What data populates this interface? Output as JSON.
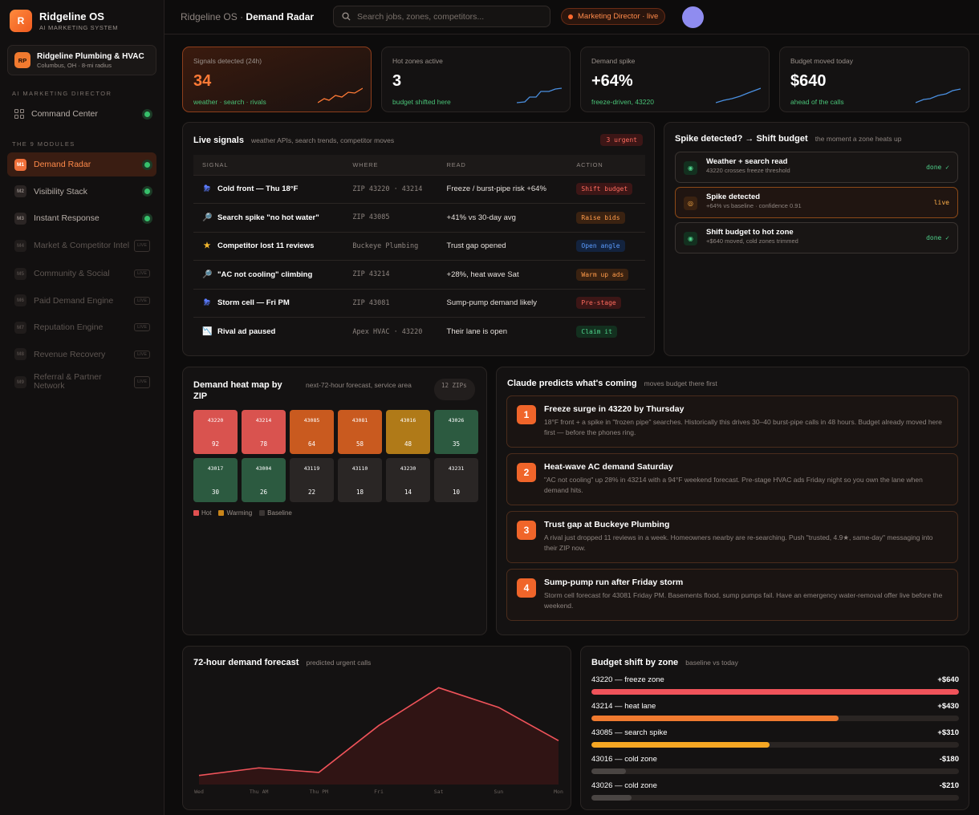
{
  "brand": {
    "logo": "R",
    "name": "Ridgeline OS",
    "sub": "AI MARKETING SYSTEM"
  },
  "org": {
    "initials": "RP",
    "name": "Ridgeline Plumbing & HVAC",
    "sub": "Columbus, OH · 8-mi radius"
  },
  "sidebar": {
    "section1": "AI MARKETING DIRECTOR",
    "command": "Command Center",
    "section2": "THE 9 MODULES",
    "modules": [
      {
        "badge": "M1",
        "label": "Demand Radar"
      },
      {
        "badge": "M2",
        "label": "Visibility Stack"
      },
      {
        "badge": "M3",
        "label": "Instant Response"
      },
      {
        "badge": "M4",
        "label": "Market & Competitor Intel",
        "tag": "LIVE"
      },
      {
        "badge": "M5",
        "label": "Community & Social",
        "tag": "LIVE"
      },
      {
        "badge": "M6",
        "label": "Paid Demand Engine",
        "tag": "LIVE"
      },
      {
        "badge": "M7",
        "label": "Reputation Engine",
        "tag": "LIVE"
      },
      {
        "badge": "M8",
        "label": "Revenue Recovery",
        "tag": "LIVE"
      },
      {
        "badge": "M9",
        "label": "Referral & Partner Network",
        "tag": "LIVE"
      }
    ]
  },
  "topbar": {
    "crumb_app": "Ridgeline OS",
    "crumb_sep": "·",
    "crumb_page": "Demand Radar",
    "search_placeholder": "Search jobs, zones, competitors...",
    "status": "Marketing Director · live"
  },
  "stats": [
    {
      "label": "Signals detected (24h)",
      "value": "34",
      "note": "weather · search · rivals"
    },
    {
      "label": "Hot zones active",
      "value": "3",
      "note": "budget shifted here"
    },
    {
      "label": "Demand spike",
      "value": "+64%",
      "note": "freeze-driven, 43220"
    },
    {
      "label": "Budget moved today",
      "value": "$640",
      "note": "ahead of the calls"
    }
  ],
  "signals": {
    "title": "Live signals",
    "sub": "weather APIs, search trends, competitor moves",
    "urgent": "3 urgent",
    "headers": [
      "SIGNAL",
      "WHERE",
      "READ",
      "ACTION"
    ],
    "rows": [
      {
        "icon": "storm-icon",
        "glyph": "⛈",
        "signal": "Cold front — Thu 18°F",
        "where": "ZIP 43220 · 43214",
        "read": "Freeze / burst-pipe risk +64%",
        "action": "Shift budget",
        "tone": "red"
      },
      {
        "icon": "search-icon",
        "glyph": "🔎",
        "signal": "Search spike \"no hot water\"",
        "where": "ZIP 43085",
        "read": "+41% vs 30-day avg",
        "action": "Raise bids",
        "tone": "orange"
      },
      {
        "icon": "star-icon",
        "glyph": "★",
        "signal": "Competitor lost 11 reviews",
        "where": "Buckeye Plumbing",
        "read": "Trust gap opened",
        "action": "Open angle",
        "tone": "blue"
      },
      {
        "icon": "search-icon",
        "glyph": "🔎",
        "signal": "\"AC not cooling\" climbing",
        "where": "ZIP 43214",
        "read": "+28%, heat wave Sat",
        "action": "Warm up ads",
        "tone": "orange"
      },
      {
        "icon": "storm-icon",
        "glyph": "⛈",
        "signal": "Storm cell — Fri PM",
        "where": "ZIP 43081",
        "read": "Sump-pump demand likely",
        "action": "Pre-stage",
        "tone": "red"
      },
      {
        "icon": "chart-down-icon",
        "glyph": "📉",
        "signal": "Rival ad paused",
        "where": "Apex HVAC · 43220",
        "read": "Their lane is open",
        "action": "Claim it",
        "tone": "green"
      }
    ]
  },
  "spike": {
    "title": "Spike detected? → Shift budget",
    "sub": "the moment a zone heats up",
    "steps": [
      {
        "title": "Weather + search read",
        "sub": "43220 crosses freeze threshold",
        "status": "done ✓"
      },
      {
        "title": "Spike detected",
        "sub": "+64% vs baseline · confidence 0.91",
        "status": "live"
      },
      {
        "title": "Shift budget to hot zone",
        "sub": "+$640 moved, cold zones trimmed",
        "status": "done ✓"
      }
    ]
  },
  "heatmap": {
    "title": "Demand heat map by ZIP",
    "sub": "next-72-hour forecast, service area",
    "badge": "12 ZIPs",
    "cells": [
      {
        "zip": "43220",
        "v": "92",
        "level": "hot"
      },
      {
        "zip": "43214",
        "v": "78",
        "level": "hot"
      },
      {
        "zip": "43085",
        "v": "64",
        "level": "hot2"
      },
      {
        "zip": "43081",
        "v": "58",
        "level": "hot2"
      },
      {
        "zip": "43016",
        "v": "48",
        "level": "warm"
      },
      {
        "zip": "43026",
        "v": "35",
        "level": "green"
      },
      {
        "zip": "43017",
        "v": "30",
        "level": "green"
      },
      {
        "zip": "43004",
        "v": "26",
        "level": "green"
      },
      {
        "zip": "43119",
        "v": "22",
        "level": "base"
      },
      {
        "zip": "43110",
        "v": "18",
        "level": "base"
      },
      {
        "zip": "43230",
        "v": "14",
        "level": "base"
      },
      {
        "zip": "43231",
        "v": "10",
        "level": "base"
      }
    ],
    "legend": [
      "Hot",
      "Warming",
      "Baseline"
    ]
  },
  "predict": {
    "title": "Claude predicts what's coming",
    "sub": "moves budget there first",
    "items": [
      {
        "n": "1",
        "title": "Freeze surge in 43220 by Thursday",
        "desc": "18°F front + a spike in \"frozen pipe\" searches. Historically this drives 30–40 burst-pipe calls in 48 hours. Budget already moved here first — before the phones ring."
      },
      {
        "n": "2",
        "title": "Heat-wave AC demand Saturday",
        "desc": "\"AC not cooling\" up 28% in 43214 with a 94°F weekend forecast. Pre-stage HVAC ads Friday night so you own the lane when demand hits."
      },
      {
        "n": "3",
        "title": "Trust gap at Buckeye Plumbing",
        "desc": "A rival just dropped 11 reviews in a week. Homeowners nearby are re-searching. Push \"trusted, 4.9★, same-day\" messaging into their ZIP now."
      },
      {
        "n": "4",
        "title": "Sump-pump run after Friday storm",
        "desc": "Storm cell forecast for 43081 Friday PM. Basements flood, sump pumps fail. Have an emergency water-removal offer live before the weekend."
      }
    ]
  },
  "chart_data": [
    {
      "type": "area",
      "title": "72-hour demand forecast",
      "subtitle": "predicted urgent calls",
      "categories": [
        "Wed",
        "Thu AM",
        "Thu PM",
        "Fri",
        "Sat",
        "Sun",
        "Mon"
      ],
      "values": [
        12,
        22,
        16,
        78,
        128,
        102,
        58
      ],
      "ylim": [
        0,
        140
      ],
      "grid": false
    },
    {
      "type": "bar",
      "title": "Budget shift by zone",
      "subtitle": "baseline vs today",
      "categories": [
        "43220 — freeze zone",
        "43214 — heat lane",
        "43085 — search spike",
        "43016 — cold zone",
        "43026 — cold zone"
      ],
      "labels": [
        "+$640",
        "+$430",
        "+$310",
        "-$180",
        "-$210"
      ],
      "values": [
        640,
        430,
        310,
        -180,
        -210
      ],
      "colors": [
        "#f0535a",
        "#f07a2f",
        "#f5a623",
        "#4a4543",
        "#4a4543"
      ]
    }
  ]
}
